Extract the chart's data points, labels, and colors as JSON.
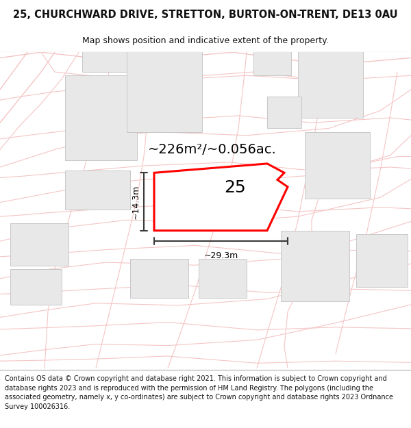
{
  "title": "25, CHURCHWARD DRIVE, STRETTON, BURTON-ON-TRENT, DE13 0AU",
  "subtitle": "Map shows position and indicative extent of the property.",
  "area_text": "~226m²/~0.056ac.",
  "label_number": "25",
  "dim_width": "~29.3m",
  "dim_height": "~14.3m",
  "footer": "Contains OS data © Crown copyright and database right 2021. This information is subject to Crown copyright and database rights 2023 and is reproduced with the permission of HM Land Registry. The polygons (including the associated geometry, namely x, y co-ordinates) are subject to Crown copyright and database rights 2023 Ordnance Survey 100026316.",
  "bg_color": "#ffffff",
  "map_bg": "#ffffff",
  "footer_bg": "#ffffff",
  "road_color": "#f5c5c5",
  "building_fill": "#e8e8e8",
  "building_edge": "#c8c8c8",
  "boundary_color": "#ff0000",
  "dim_line_color": "#3a3a3a",
  "text_color": "#111111",
  "header_sep_color": "#cccccc"
}
